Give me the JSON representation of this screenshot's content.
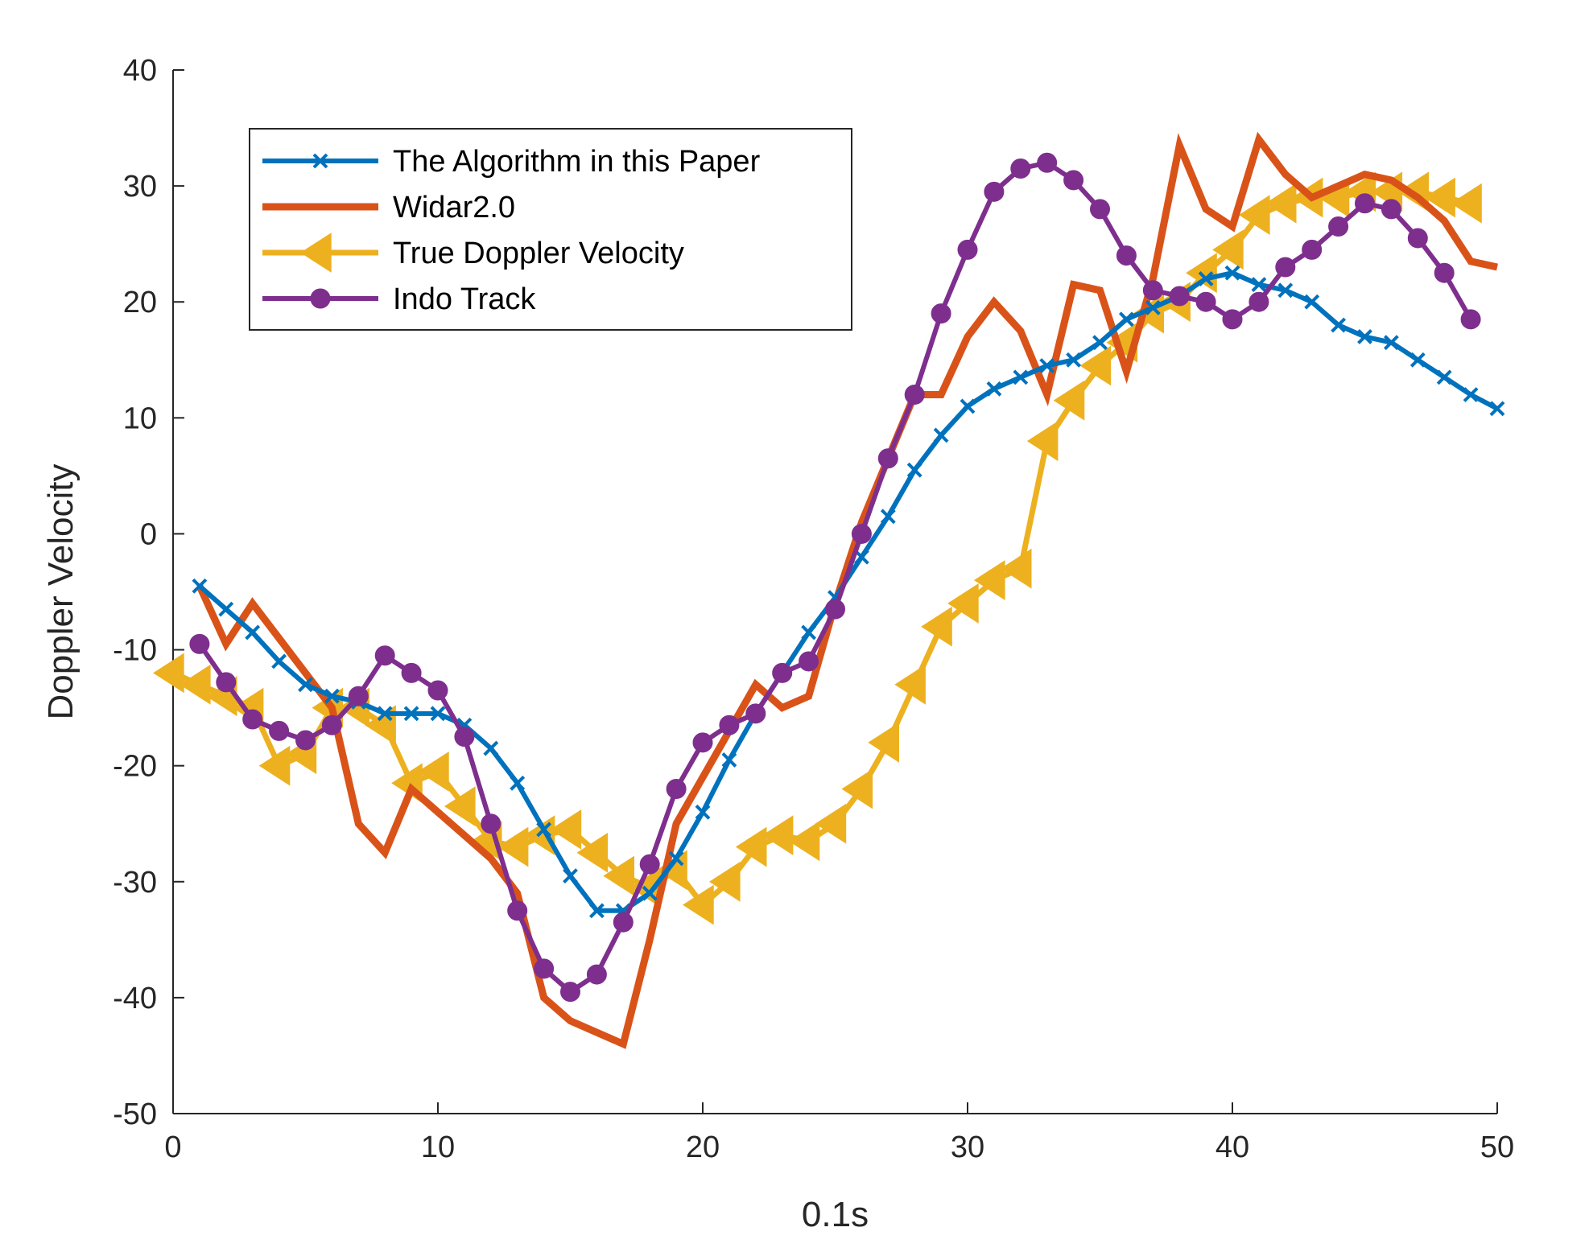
{
  "chart_data": {
    "type": "line",
    "title": "",
    "xlabel": "0.1s",
    "ylabel": "Doppler Velocity",
    "xlim": [
      0,
      50
    ],
    "ylim": [
      -50,
      40
    ],
    "xticks": [
      "0",
      "10",
      "20",
      "30",
      "40",
      "50"
    ],
    "yticks": [
      "40",
      "30",
      "20",
      "10",
      "0",
      "-10",
      "-20",
      "-30",
      "-40",
      "-50"
    ],
    "grid": false,
    "legend_position": "top-left",
    "series": [
      {
        "name": "The Algorithm in this Paper",
        "color": "#0072BD",
        "marker": "x",
        "x": [
          1,
          2,
          3,
          4,
          5,
          6,
          7,
          8,
          9,
          10,
          11,
          12,
          13,
          14,
          15,
          16,
          17,
          18,
          19,
          20,
          21,
          22,
          23,
          24,
          25,
          26,
          27,
          28,
          29,
          30,
          31,
          32,
          33,
          34,
          35,
          36,
          37,
          38,
          39,
          40,
          41,
          42,
          43,
          44,
          45,
          46,
          47,
          48,
          49,
          50
        ],
        "y": [
          -4.5,
          -6.5,
          -8.5,
          -11,
          -13,
          -14,
          -14.5,
          -15.5,
          -15.5,
          -15.5,
          -16.5,
          -18.5,
          -21.5,
          -25.5,
          -29.5,
          -32.5,
          -32.5,
          -31,
          -28,
          -24,
          -19.5,
          -15.5,
          -12,
          -8.5,
          -5.5,
          -2,
          1.5,
          5.5,
          8.5,
          11,
          12.5,
          13.5,
          14.5,
          15,
          16.5,
          18.5,
          19.5,
          20.5,
          22,
          22.5,
          21.5,
          21,
          20,
          18,
          17,
          16.5,
          15,
          13.5,
          12,
          10.8
        ]
      },
      {
        "name": "Widar2.0",
        "color": "#D95319",
        "marker": "none",
        "x": [
          1,
          2,
          3,
          4,
          5,
          6,
          7,
          8,
          9,
          10,
          11,
          12,
          13,
          14,
          15,
          16,
          17,
          18,
          19,
          20,
          21,
          22,
          23,
          24,
          25,
          26,
          27,
          28,
          29,
          30,
          31,
          32,
          33,
          34,
          35,
          36,
          37,
          38,
          39,
          40,
          41,
          42,
          43,
          44,
          45,
          46,
          47,
          48,
          49,
          50
        ],
        "y": [
          -4.5,
          -9.5,
          -6,
          -9,
          -12,
          -15,
          -25,
          -27.5,
          -22,
          -24,
          -26,
          -28,
          -31,
          -40,
          -42,
          -43,
          -44,
          -35,
          -25,
          -21,
          -17,
          -13,
          -15,
          -14,
          -6,
          1,
          6.5,
          12,
          12,
          17,
          20,
          17.5,
          12,
          21.5,
          21,
          14,
          22,
          33.5,
          28,
          26.5,
          34,
          31,
          29,
          30,
          31,
          30.5,
          29,
          27,
          23.5,
          23
        ]
      },
      {
        "name": "True Doppler Velocity",
        "color": "#EDB120",
        "marker": "triangle-left",
        "x": [
          0,
          1,
          2,
          3,
          4,
          5,
          6,
          7,
          8,
          9,
          10,
          11,
          12,
          13,
          14,
          15,
          16,
          17,
          18,
          19,
          20,
          21,
          22,
          23,
          24,
          25,
          26,
          27,
          28,
          29,
          30,
          31,
          32,
          33,
          34,
          35,
          36,
          37,
          38,
          39,
          40,
          41,
          42,
          43,
          44,
          45,
          46,
          47,
          48,
          49
        ],
        "y": [
          -12,
          -13,
          -14,
          -15,
          -20,
          -19,
          -15,
          -15,
          -16.5,
          -21.5,
          -20.5,
          -23.5,
          -26.5,
          -27,
          -26,
          -25.5,
          -27.5,
          -29.5,
          -30.5,
          -29,
          -32,
          -30,
          -27,
          -26,
          -26.5,
          -25,
          -22,
          -18,
          -13,
          -8,
          -6,
          -4,
          -3,
          8,
          11.5,
          14.5,
          16.5,
          19,
          20,
          22.5,
          24.5,
          27.5,
          28.5,
          29,
          29,
          29.5,
          29.5,
          29.5,
          29,
          28.5
        ]
      },
      {
        "name": "Indo Track",
        "color": "#7E2F8E",
        "marker": "o",
        "x": [
          1,
          2,
          3,
          4,
          5,
          6,
          7,
          8,
          9,
          10,
          11,
          12,
          13,
          14,
          15,
          16,
          17,
          18,
          19,
          20,
          21,
          22,
          23,
          24,
          25,
          26,
          27,
          28,
          29,
          30,
          31,
          32,
          33,
          34,
          35,
          36,
          37,
          38,
          39,
          40,
          41,
          42,
          43,
          44,
          45,
          46,
          47,
          48,
          49
        ],
        "y": [
          -9.5,
          -12.8,
          -16,
          -17,
          -17.8,
          -16.5,
          -14,
          -10.5,
          -12,
          -13.5,
          -17.5,
          -25,
          -32.5,
          -37.5,
          -39.5,
          -38,
          -33.5,
          -28.5,
          -22,
          -18,
          -16.5,
          -15.5,
          -12,
          -11,
          -6.5,
          0,
          6.5,
          12,
          19,
          24.5,
          29.5,
          31.5,
          32,
          30.5,
          28,
          24,
          21,
          20.5,
          20,
          18.5,
          20,
          23,
          24.5,
          26.5,
          28.5,
          28,
          25.5,
          22.5,
          18.5
        ]
      }
    ]
  }
}
